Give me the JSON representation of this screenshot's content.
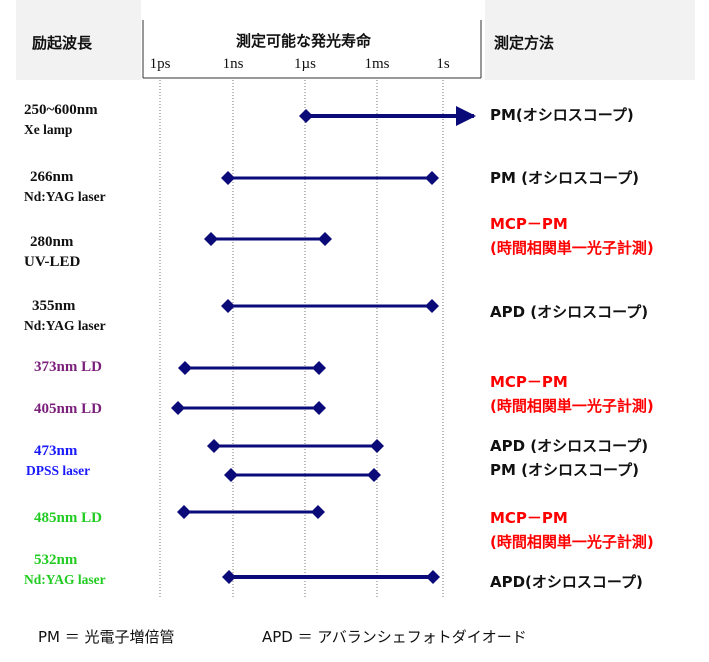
{
  "header": {
    "excitation_label": "励起波長",
    "lifetime_label": "測定可能な発光寿命",
    "method_label": "測定方法",
    "ticks": [
      "1ps",
      "1ns",
      "1µs",
      "1ms",
      "1s"
    ]
  },
  "rows": [
    {
      "excitation": [
        "250~600nm",
        "Xe lamp"
      ],
      "method": [
        "PM(オシロスコープ)"
      ]
    },
    {
      "excitation": [
        "266nm",
        "Nd:YAG laser"
      ],
      "method": [
        "PM (オシロスコープ)"
      ]
    },
    {
      "excitation": [
        "280nm",
        "UV-LED"
      ],
      "method": [
        "MCP－PM",
        "(時間相関単一光子計測)"
      ]
    },
    {
      "excitation": [
        "355nm",
        "Nd:YAG laser"
      ],
      "method": [
        "APD (オシロスコープ)"
      ]
    },
    {
      "excitation": [
        "373nm LD"
      ],
      "method": []
    },
    {
      "excitation": [
        "405nm LD"
      ],
      "method": [
        "MCP－PM",
        "(時間相関単一光子計測)"
      ]
    },
    {
      "excitation": [
        "473nm",
        "DPSS laser"
      ],
      "method": [
        "APD (オシロスコープ)",
        "PM (オシロスコープ)"
      ]
    },
    {
      "excitation": [
        "485nm LD"
      ],
      "method": [
        "MCP－PM",
        "(時間相関単一光子計測)"
      ]
    },
    {
      "excitation": [
        "532nm",
        "Nd:YAG laser"
      ],
      "method": [
        "APD(オシロスコープ)"
      ]
    }
  ],
  "legend": {
    "pm": "PM ＝ 光電子増倍管",
    "apd": "APD ＝ アバランシェフォトダイオード"
  },
  "colors": {
    "bar": "#0a0a78",
    "red": "#ff0000",
    "purple": "#7a1f7a",
    "blue": "#1a1aff",
    "green": "#22cc22"
  }
}
